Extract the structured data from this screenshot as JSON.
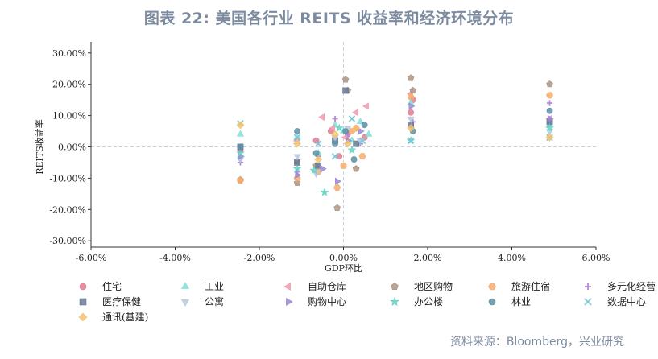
{
  "title": "图表 22: 美国各行业 REITS 收益率和经济环境分布",
  "source": "资料来源：Bloomberg，兴业研究",
  "chart_data": {
    "type": "scatter",
    "title": "图表 22: 美国各行业 REITS 收益率和经济环境分布",
    "xlabel": "GDP环比",
    "ylabel": "REITS收益率",
    "xlim": [
      -0.06,
      0.06
    ],
    "ylim": [
      -0.32,
      0.32
    ],
    "x_ticks": [
      -0.06,
      -0.04,
      -0.02,
      0.0,
      0.02,
      0.04,
      0.06
    ],
    "x_tick_labels": [
      "-6.00%",
      "-4.00%",
      "-2.00%",
      "0.00%",
      "2.00%",
      "4.00%",
      "6.00%"
    ],
    "y_ticks": [
      0.3,
      0.2,
      0.1,
      0.0,
      -0.1,
      -0.2,
      -0.3
    ],
    "y_tick_labels": [
      "30.00%",
      "20.00%",
      "10.00%",
      "0.00%",
      "-10.00%",
      "-20.00%",
      "-30.00%"
    ],
    "reference_lines": {
      "x": 0,
      "y": 0,
      "style": "dashed"
    },
    "grid": false,
    "legend_position": "bottom",
    "series": [
      {
        "name": "住宅",
        "marker": "circle",
        "color": "#e07b8f",
        "x": [
          -0.0245,
          -0.011,
          -0.0065,
          -0.003,
          -0.001,
          0.001,
          0.003,
          0.005,
          0.016,
          0.0165,
          0.049
        ],
        "y": [
          -0.01,
          -0.05,
          0.02,
          0.05,
          -0.03,
          0.04,
          0.06,
          0.03,
          0.11,
          0.15,
          0.08
        ]
      },
      {
        "name": "工业",
        "marker": "triangle-up",
        "color": "#7ee3d8",
        "x": [
          -0.0245,
          -0.011,
          -0.006,
          -0.002,
          0.0,
          0.002,
          0.004,
          0.006,
          0.016,
          0.049
        ],
        "y": [
          0.04,
          0.03,
          -0.02,
          0.07,
          0.05,
          0.02,
          0.08,
          0.04,
          0.14,
          0.07
        ]
      },
      {
        "name": "自助仓库",
        "marker": "triangle-left",
        "color": "#f29aae",
        "x": [
          -0.0245,
          -0.011,
          -0.005,
          -0.0025,
          0.0005,
          0.003,
          0.0055,
          0.016,
          0.049
        ],
        "y": [
          0.0,
          0.02,
          0.095,
          0.06,
          0.03,
          0.11,
          0.13,
          0.17,
          0.09
        ]
      },
      {
        "name": "地区购物",
        "marker": "pentagon",
        "color": "#ab9584",
        "x": [
          -0.0245,
          -0.011,
          -0.0065,
          -0.0015,
          0.0005,
          0.001,
          0.003,
          0.016,
          0.0165,
          0.049
        ],
        "y": [
          -0.105,
          -0.115,
          -0.06,
          -0.195,
          0.215,
          0.18,
          -0.07,
          0.22,
          0.18,
          0.2
        ]
      },
      {
        "name": "旅游住宿",
        "marker": "hexagon",
        "color": "#f5ad6d",
        "x": [
          -0.0245,
          -0.011,
          -0.006,
          -0.0015,
          0.0,
          0.002,
          0.0045,
          0.016,
          0.049
        ],
        "y": [
          -0.107,
          -0.1,
          -0.08,
          -0.13,
          -0.06,
          0.05,
          -0.03,
          0.16,
          0.165
        ]
      },
      {
        "name": "多元化经营",
        "marker": "plus",
        "color": "#b489d9",
        "x": [
          -0.0245,
          -0.011,
          -0.006,
          -0.002,
          0.001,
          0.004,
          0.0165,
          0.049
        ],
        "y": [
          -0.05,
          -0.08,
          -0.03,
          0.09,
          0.04,
          0.01,
          0.08,
          0.14
        ]
      },
      {
        "name": "医疗保健",
        "marker": "square",
        "color": "#6a7b97",
        "x": [
          -0.0245,
          -0.011,
          -0.006,
          -0.002,
          0.0005,
          0.003,
          0.016,
          0.049
        ],
        "y": [
          0.0,
          -0.05,
          -0.06,
          0.02,
          0.18,
          0.01,
          0.07,
          0.08
        ]
      },
      {
        "name": "公寓",
        "marker": "triangle-down",
        "color": "#b7c8dc",
        "x": [
          -0.0245,
          -0.011,
          -0.0065,
          -0.002,
          0.001,
          0.004,
          0.016,
          0.049
        ],
        "y": [
          -0.04,
          -0.03,
          -0.085,
          0.03,
          0.06,
          0.02,
          0.09,
          0.05
        ]
      },
      {
        "name": "购物中心",
        "marker": "triangle-right",
        "color": "#9b86d2",
        "x": [
          -0.0245,
          -0.011,
          -0.005,
          -0.0015,
          0.001,
          0.004,
          0.016,
          0.049
        ],
        "y": [
          -0.03,
          -0.09,
          -0.07,
          -0.11,
          0.02,
          0.05,
          0.13,
          0.09
        ]
      },
      {
        "name": "办公楼",
        "marker": "star",
        "color": "#62d3c2",
        "x": [
          -0.0245,
          -0.011,
          -0.007,
          -0.0045,
          -0.001,
          0.002,
          0.016,
          0.049
        ],
        "y": [
          -0.02,
          -0.07,
          -0.075,
          -0.145,
          0.06,
          -0.01,
          0.02,
          0.06
        ]
      },
      {
        "name": "林业",
        "marker": "circle",
        "color": "#5e8fa6",
        "x": [
          -0.0245,
          -0.011,
          -0.0065,
          -0.002,
          0.0005,
          0.0025,
          0.005,
          0.0165,
          0.049
        ],
        "y": [
          0.0,
          0.05,
          -0.02,
          0.01,
          0.05,
          -0.04,
          0.07,
          0.05,
          0.115
        ]
      },
      {
        "name": "数据中心",
        "marker": "x",
        "color": "#7ec7d4",
        "x": [
          -0.0245,
          -0.011,
          -0.006,
          -0.002,
          0.002,
          0.0045,
          0.016,
          0.049
        ],
        "y": [
          0.075,
          0.03,
          0.01,
          -0.03,
          0.09,
          0.02,
          0.02,
          0.03
        ]
      },
      {
        "name": "通讯(基建)",
        "marker": "diamond",
        "color": "#f3c36e",
        "x": [
          -0.0245,
          -0.011,
          -0.006,
          -0.002,
          0.001,
          0.003,
          0.016,
          0.049
        ],
        "y": [
          0.07,
          0.01,
          -0.04,
          0.04,
          0.01,
          0.06,
          0.06,
          0.03
        ]
      }
    ]
  }
}
